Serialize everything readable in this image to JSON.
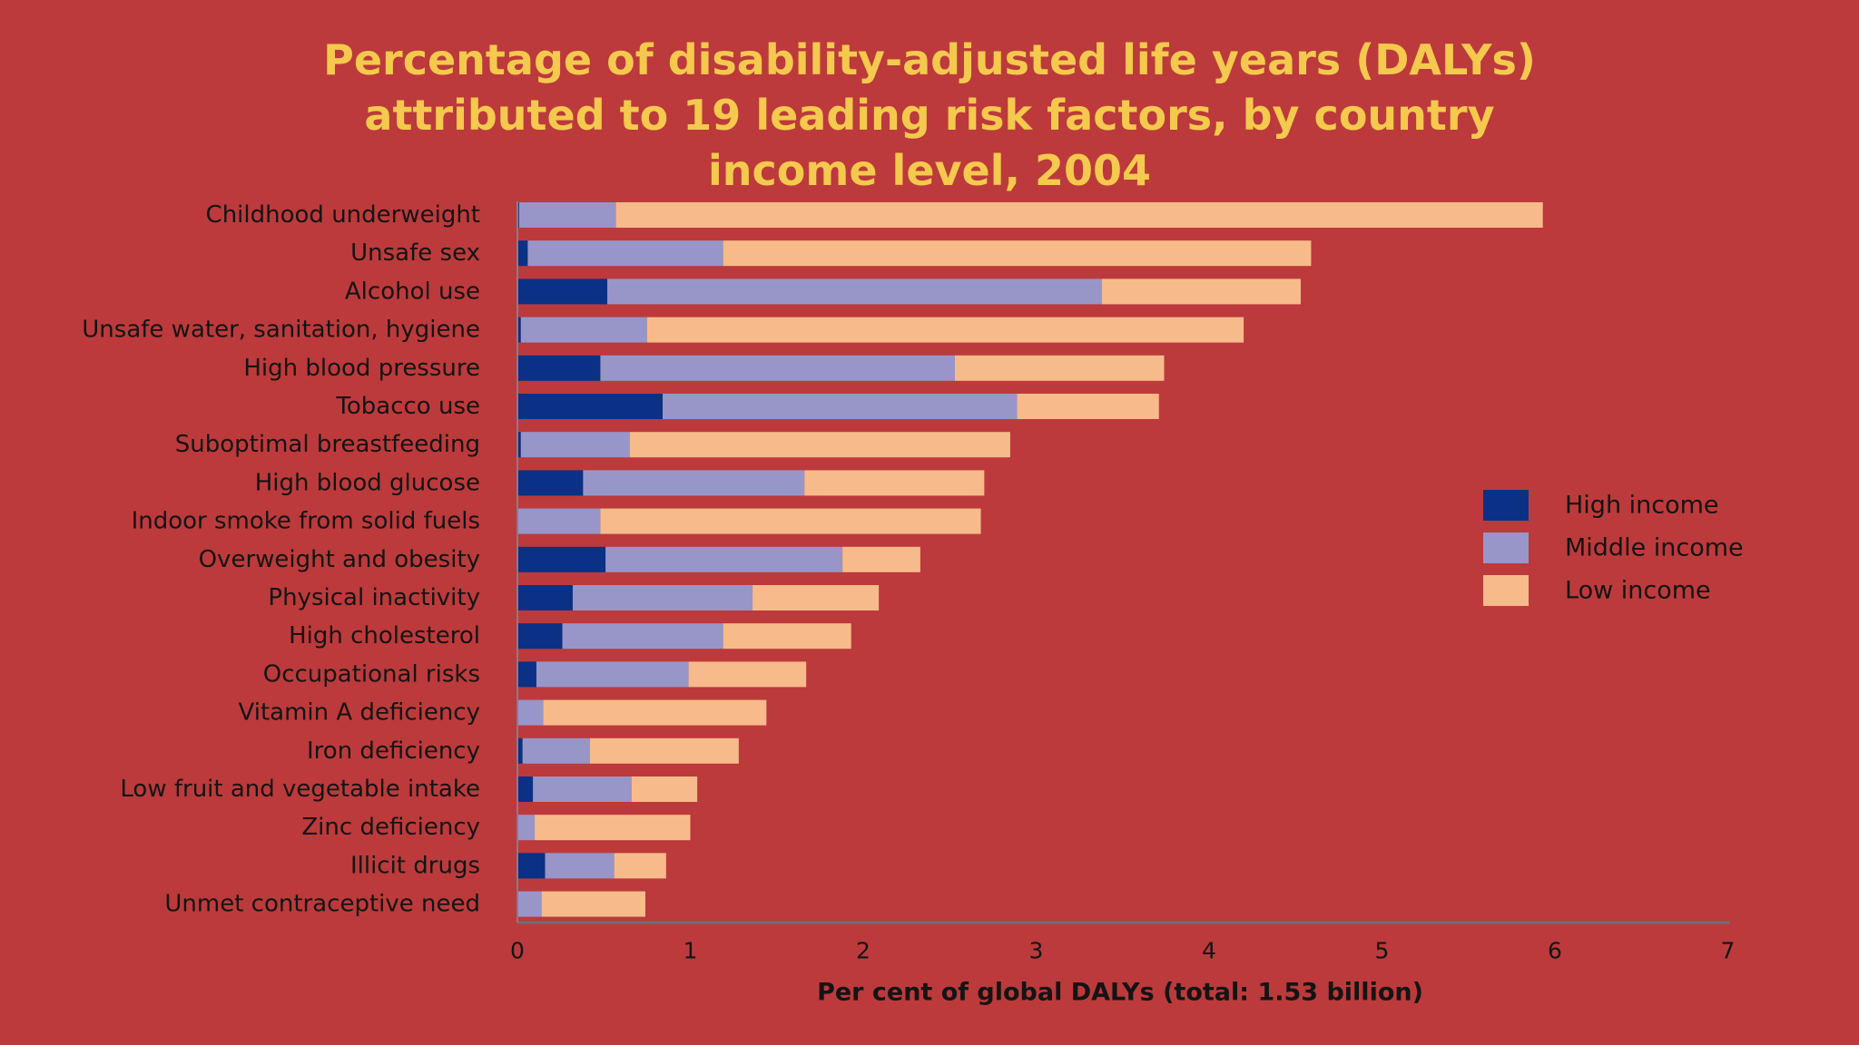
{
  "chart_data": {
    "type": "bar",
    "orientation": "horizontal",
    "stacked": true,
    "title_lines": [
      "Percentage of disability-adjusted life years (DALYs)",
      "attributed to 19 leading risk factors, by country",
      "income level, 2004"
    ],
    "xlabel": "Per cent of global DALYs (total: 1.53 billion)",
    "ylabel": "",
    "xlim": [
      0,
      7
    ],
    "xticks": [
      "0",
      "1",
      "2",
      "3",
      "4",
      "5",
      "6",
      "7"
    ],
    "legend_position": "right",
    "grid": false,
    "categories": [
      "Childhood underweight",
      "Unsafe sex",
      "Alcohol use",
      "Unsafe water, sanitation, hygiene",
      "High blood pressure",
      "Tobacco use",
      "Suboptimal breastfeeding",
      "High blood glucose",
      "Indoor smoke from solid fuels",
      "Overweight and obesity",
      "Physical inactivity",
      "High cholesterol",
      "Occupational risks",
      "Vitamin A deficiency",
      "Iron deficiency",
      "Low fruit and vegetable intake",
      "Zinc deficiency",
      "Illicit drugs",
      "Unmet contraceptive need"
    ],
    "series": [
      {
        "name": "High income",
        "color": "#0a3185",
        "values": [
          0.01,
          0.06,
          0.52,
          0.02,
          0.48,
          0.84,
          0.02,
          0.38,
          0.0,
          0.51,
          0.32,
          0.26,
          0.11,
          0.0,
          0.03,
          0.09,
          0.0,
          0.16,
          0.0
        ]
      },
      {
        "name": "Middle income",
        "color": "#9896c9",
        "values": [
          0.56,
          1.13,
          2.86,
          0.73,
          2.05,
          2.05,
          0.63,
          1.28,
          0.48,
          1.37,
          1.04,
          0.93,
          0.88,
          0.15,
          0.39,
          0.57,
          0.1,
          0.4,
          0.14
        ]
      },
      {
        "name": "Low income",
        "color": "#f7bb8b",
        "values": [
          5.36,
          3.4,
          1.15,
          3.45,
          1.21,
          0.82,
          2.2,
          1.04,
          2.2,
          0.45,
          0.73,
          0.74,
          0.68,
          1.29,
          0.86,
          0.38,
          0.9,
          0.3,
          0.6
        ]
      }
    ]
  }
}
